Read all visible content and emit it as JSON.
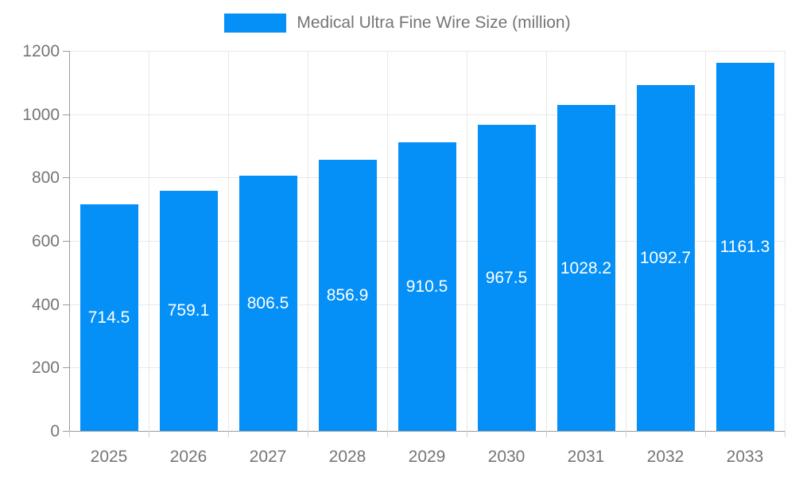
{
  "chart_data": {
    "type": "bar",
    "title": "Medical Ultra Fine Wire Size (million)",
    "categories": [
      "2025",
      "2026",
      "2027",
      "2028",
      "2029",
      "2030",
      "2031",
      "2032",
      "2033"
    ],
    "values": [
      714.5,
      759.1,
      806.5,
      856.9,
      910.5,
      967.5,
      1028.2,
      1092.7,
      1161.3
    ],
    "value_labels": [
      "714.5",
      "759.1",
      "806.5",
      "856.9",
      "910.5",
      "967.5",
      "1028.2",
      "1092.7",
      "1161.3"
    ],
    "yticks": [
      0,
      200,
      400,
      600,
      800,
      1000,
      1200
    ],
    "ytick_labels": [
      "0",
      "200",
      "400",
      "600",
      "800",
      "1000",
      "1200"
    ],
    "ylim": [
      0,
      1200
    ],
    "xlabel": "",
    "ylabel": "",
    "grid": true,
    "legend_position": "top-center",
    "colors": {
      "bar": "#0590f7",
      "bar_label": "#ffffff",
      "axis_line": "#9b9b9b",
      "grid_line": "#e8e8e8",
      "x_tick_mark": "#d0d0d0",
      "tick_text": "#757575",
      "legend_text": "#757575",
      "background": "#ffffff"
    }
  },
  "legend": {
    "label": "Medical Ultra Fine Wire Size (million)",
    "swatch_color": "#0590f7"
  }
}
